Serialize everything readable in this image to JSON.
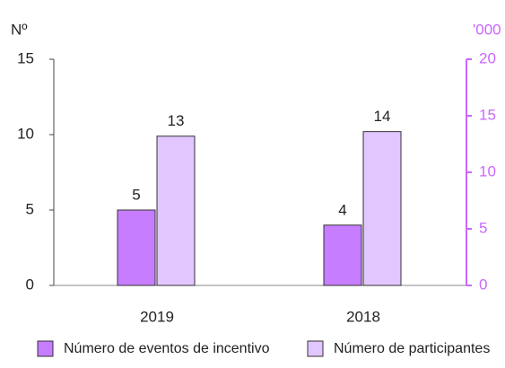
{
  "chart_data": {
    "type": "bar",
    "ylabel": "Nº",
    "y2label": "'000",
    "categories": [
      "2019",
      "2018"
    ],
    "series": [
      {
        "name": "Número de eventos de incentivo",
        "color": "#c77dff",
        "values": [
          5,
          4
        ],
        "value_labels": [
          "5",
          "4"
        ]
      },
      {
        "name": "Número de participantes",
        "color": "#e2c6ff",
        "axis": "y2",
        "values": [
          13.2,
          13.6
        ],
        "value_labels": [
          "13",
          "14"
        ]
      }
    ],
    "ylim": [
      0,
      15
    ],
    "yticks": [
      0,
      5,
      10,
      15
    ],
    "y2lim": [
      0,
      20
    ],
    "y2ticks": [
      0,
      5,
      10,
      15,
      20
    ],
    "y2color": "#cc66ff"
  }
}
